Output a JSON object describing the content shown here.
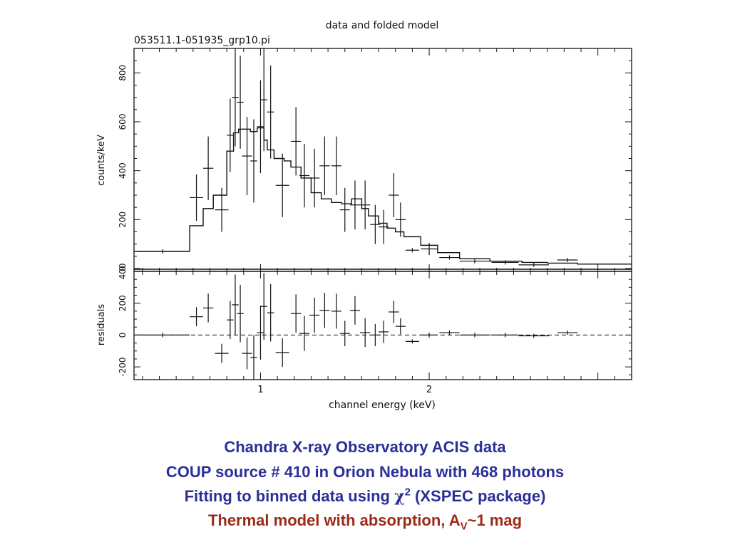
{
  "chart_data": [
    {
      "type": "scatter",
      "title": "data and folded model",
      "subtitle": "053511.1-051935_grp10.pi",
      "xlabel": "",
      "ylabel": "counts/keV",
      "xlim": [
        0.25,
        3.2
      ],
      "ylim": [
        0,
        900
      ],
      "yticks": [
        0,
        200,
        400,
        600,
        800
      ],
      "grid": false,
      "series": [
        {
          "style": "error-crosses",
          "points": [
            {
              "x": 0.42,
              "y": 70,
              "xerr": 0.16,
              "yerr": 0
            },
            {
              "x": 0.62,
              "y": 290,
              "xerr": 0.04,
              "yerr": 95
            },
            {
              "x": 0.69,
              "y": 410,
              "xerr": 0.03,
              "yerr": 130
            },
            {
              "x": 0.77,
              "y": 240,
              "xerr": 0.04,
              "yerr": 90
            },
            {
              "x": 0.82,
              "y": 545,
              "xerr": 0.02,
              "yerr": 150
            },
            {
              "x": 0.85,
              "y": 700,
              "xerr": 0.02,
              "yerr": 200
            },
            {
              "x": 0.88,
              "y": 680,
              "xerr": 0.02,
              "yerr": 190
            },
            {
              "x": 0.92,
              "y": 460,
              "xerr": 0.03,
              "yerr": 160
            },
            {
              "x": 0.96,
              "y": 440,
              "xerr": 0.02,
              "yerr": 170
            },
            {
              "x": 1.0,
              "y": 580,
              "xerr": 0.02,
              "yerr": 190
            },
            {
              "x": 1.02,
              "y": 690,
              "xerr": 0.02,
              "yerr": 210
            },
            {
              "x": 1.06,
              "y": 640,
              "xerr": 0.02,
              "yerr": 190
            },
            {
              "x": 1.13,
              "y": 340,
              "xerr": 0.04,
              "yerr": 130
            },
            {
              "x": 1.21,
              "y": 520,
              "xerr": 0.03,
              "yerr": 140
            },
            {
              "x": 1.26,
              "y": 380,
              "xerr": 0.03,
              "yerr": 130
            },
            {
              "x": 1.32,
              "y": 370,
              "xerr": 0.03,
              "yerr": 120
            },
            {
              "x": 1.38,
              "y": 420,
              "xerr": 0.03,
              "yerr": 120
            },
            {
              "x": 1.45,
              "y": 420,
              "xerr": 0.03,
              "yerr": 120
            },
            {
              "x": 1.5,
              "y": 240,
              "xerr": 0.03,
              "yerr": 90
            },
            {
              "x": 1.56,
              "y": 260,
              "xerr": 0.03,
              "yerr": 100
            },
            {
              "x": 1.62,
              "y": 260,
              "xerr": 0.03,
              "yerr": 100
            },
            {
              "x": 1.68,
              "y": 180,
              "xerr": 0.03,
              "yerr": 80
            },
            {
              "x": 1.73,
              "y": 170,
              "xerr": 0.03,
              "yerr": 70
            },
            {
              "x": 1.79,
              "y": 300,
              "xerr": 0.03,
              "yerr": 90
            },
            {
              "x": 1.83,
              "y": 200,
              "xerr": 0.03,
              "yerr": 70
            },
            {
              "x": 1.9,
              "y": 75,
              "xerr": 0.04,
              "yerr": 0
            },
            {
              "x": 2.0,
              "y": 80,
              "xerr": 0.05,
              "yerr": 25
            },
            {
              "x": 2.12,
              "y": 45,
              "xerr": 0.06,
              "yerr": 0
            },
            {
              "x": 2.27,
              "y": 30,
              "xerr": 0.09,
              "yerr": 0
            },
            {
              "x": 2.45,
              "y": 25,
              "xerr": 0.08,
              "yerr": 0
            },
            {
              "x": 2.62,
              "y": 15,
              "xerr": 0.09,
              "yerr": 0
            },
            {
              "x": 2.82,
              "y": 35,
              "xerr": 0.06,
              "yerr": 0
            }
          ]
        },
        {
          "style": "step",
          "x": [
            0.25,
            0.58,
            0.66,
            0.72,
            0.8,
            0.84,
            0.87,
            0.9,
            0.94,
            0.98,
            1.02,
            1.04,
            1.08,
            1.14,
            1.18,
            1.24,
            1.3,
            1.36,
            1.42,
            1.48,
            1.54,
            1.6,
            1.64,
            1.7,
            1.75,
            1.8,
            1.85,
            1.95,
            2.05,
            2.18,
            2.36,
            2.55,
            2.7,
            2.88,
            3.2
          ],
          "y": [
            70,
            175,
            245,
            300,
            480,
            555,
            570,
            570,
            560,
            575,
            525,
            485,
            450,
            440,
            415,
            370,
            310,
            285,
            270,
            265,
            285,
            245,
            215,
            185,
            165,
            150,
            130,
            95,
            65,
            40,
            30,
            25,
            22,
            18,
            15
          ]
        }
      ]
    },
    {
      "type": "scatter",
      "xlabel": "channel energy (keV)",
      "ylabel": "residuals",
      "xlim": [
        0.25,
        3.2
      ],
      "ylim": [
        -280,
        400
      ],
      "yticks": [
        -200,
        0,
        200,
        400
      ],
      "xticks": [
        1,
        2
      ],
      "zero_line": "dashed",
      "grid": false,
      "series": [
        {
          "style": "error-crosses",
          "points": [
            {
              "x": 0.42,
              "y": 0,
              "xerr": 0.16,
              "yerr": 0
            },
            {
              "x": 0.62,
              "y": 115,
              "xerr": 0.04,
              "yerr": 60
            },
            {
              "x": 0.69,
              "y": 170,
              "xerr": 0.03,
              "yerr": 90
            },
            {
              "x": 0.77,
              "y": -115,
              "xerr": 0.04,
              "yerr": 60
            },
            {
              "x": 0.82,
              "y": 95,
              "xerr": 0.02,
              "yerr": 120
            },
            {
              "x": 0.85,
              "y": 190,
              "xerr": 0.02,
              "yerr": 190
            },
            {
              "x": 0.88,
              "y": 135,
              "xerr": 0.02,
              "yerr": 180
            },
            {
              "x": 0.92,
              "y": -115,
              "xerr": 0.03,
              "yerr": 100
            },
            {
              "x": 0.96,
              "y": -140,
              "xerr": 0.02,
              "yerr": 140
            },
            {
              "x": 1.0,
              "y": 15,
              "xerr": 0.02,
              "yerr": 170
            },
            {
              "x": 1.02,
              "y": 180,
              "xerr": 0.02,
              "yerr": 210
            },
            {
              "x": 1.06,
              "y": 140,
              "xerr": 0.02,
              "yerr": 180
            },
            {
              "x": 1.13,
              "y": -110,
              "xerr": 0.04,
              "yerr": 90
            },
            {
              "x": 1.21,
              "y": 135,
              "xerr": 0.03,
              "yerr": 120
            },
            {
              "x": 1.26,
              "y": 10,
              "xerr": 0.03,
              "yerr": 110
            },
            {
              "x": 1.32,
              "y": 125,
              "xerr": 0.03,
              "yerr": 110
            },
            {
              "x": 1.38,
              "y": 155,
              "xerr": 0.03,
              "yerr": 110
            },
            {
              "x": 1.45,
              "y": 150,
              "xerr": 0.03,
              "yerr": 110
            },
            {
              "x": 1.5,
              "y": 10,
              "xerr": 0.03,
              "yerr": 80
            },
            {
              "x": 1.56,
              "y": 155,
              "xerr": 0.03,
              "yerr": 90
            },
            {
              "x": 1.62,
              "y": 15,
              "xerr": 0.03,
              "yerr": 90
            },
            {
              "x": 1.68,
              "y": 0,
              "xerr": 0.03,
              "yerr": 70
            },
            {
              "x": 1.73,
              "y": 20,
              "xerr": 0.03,
              "yerr": 70
            },
            {
              "x": 1.79,
              "y": 145,
              "xerr": 0.03,
              "yerr": 70
            },
            {
              "x": 1.83,
              "y": 55,
              "xerr": 0.03,
              "yerr": 50
            },
            {
              "x": 1.9,
              "y": -40,
              "xerr": 0.04,
              "yerr": 0
            },
            {
              "x": 2.0,
              "y": 0,
              "xerr": 0.05,
              "yerr": 15
            },
            {
              "x": 2.12,
              "y": 15,
              "xerr": 0.06,
              "yerr": 0
            },
            {
              "x": 2.27,
              "y": 0,
              "xerr": 0.09,
              "yerr": 0
            },
            {
              "x": 2.45,
              "y": 0,
              "xerr": 0.08,
              "yerr": 0
            },
            {
              "x": 2.62,
              "y": -5,
              "xerr": 0.09,
              "yerr": 0
            },
            {
              "x": 2.82,
              "y": 15,
              "xerr": 0.06,
              "yerr": 0
            }
          ]
        }
      ]
    }
  ],
  "caption": {
    "line1": "Chandra X-ray Observatory ACIS data",
    "line2": "COUP source  # 410 in Orion Nebula with 468 photons",
    "line3_pre": "Fitting to binned data using ",
    "line3_symbol": "χ",
    "line3_sup": "2",
    "line3_post": " (XSPEC package)",
    "line4_pre": "Thermal model with absorption, A",
    "line4_sub": "V",
    "line4_post": "~1 mag",
    "colors": {
      "blue": "#2b2f97",
      "red": "#9b2a17"
    }
  }
}
